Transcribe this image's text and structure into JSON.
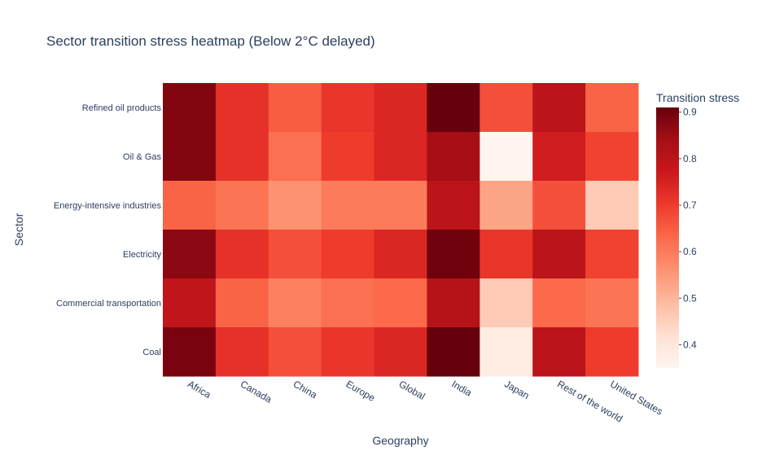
{
  "chart_data": {
    "type": "heatmap",
    "title": "Sector transition stress heatmap (Below 2°C delayed)",
    "xlabel": "Geography",
    "ylabel": "Sector",
    "x": [
      "Africa",
      "Canada",
      "China",
      "Europe",
      "Global",
      "India",
      "Japan",
      "Rest of the world",
      "United States"
    ],
    "y": [
      "Refined oil products",
      "Oil & Gas",
      "Energy-intensive industries",
      "Electricity",
      "Commercial transportation",
      "Coal"
    ],
    "z": [
      [
        0.88,
        0.72,
        0.65,
        0.71,
        0.74,
        0.91,
        0.67,
        0.8,
        0.64
      ],
      [
        0.88,
        0.72,
        0.62,
        0.7,
        0.74,
        0.84,
        0.35,
        0.76,
        0.69
      ],
      [
        0.64,
        0.61,
        0.56,
        0.6,
        0.6,
        0.8,
        0.53,
        0.67,
        0.46
      ],
      [
        0.87,
        0.72,
        0.67,
        0.7,
        0.74,
        0.9,
        0.71,
        0.8,
        0.69
      ],
      [
        0.79,
        0.64,
        0.59,
        0.62,
        0.63,
        0.81,
        0.46,
        0.63,
        0.61
      ],
      [
        0.89,
        0.72,
        0.67,
        0.71,
        0.74,
        0.91,
        0.38,
        0.8,
        0.7
      ]
    ],
    "colorscale": "Reds",
    "zmin": 0.35,
    "zmax": 0.91,
    "colorbar": {
      "title": "Transition stress",
      "ticks": [
        "0.4",
        "0.5",
        "0.6",
        "0.7",
        "0.8",
        "0.9"
      ]
    }
  }
}
